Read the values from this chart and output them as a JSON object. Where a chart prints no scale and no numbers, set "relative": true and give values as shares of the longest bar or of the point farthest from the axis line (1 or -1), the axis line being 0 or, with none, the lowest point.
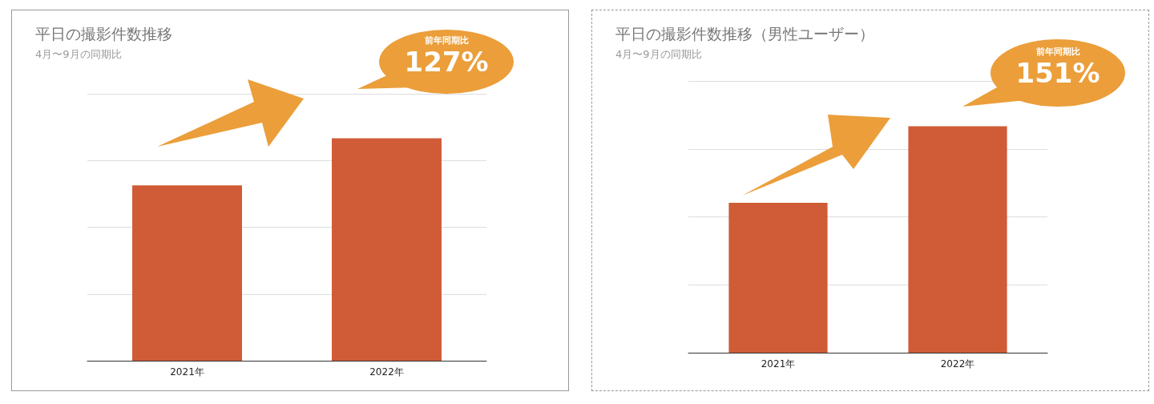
{
  "chart_data": [
    {
      "type": "bar",
      "title": "平日の撮影件数推移",
      "subtitle": "4月〜9月の同期比",
      "categories": [
        "2021年",
        "2022年"
      ],
      "values": [
        0.788,
        1
      ],
      "color": "#cf5c36",
      "relative": true,
      "grid": "y",
      "annotations": [
        "前年同期比",
        "127%"
      ]
    },
    {
      "type": "bar",
      "title": "平日の撮影件数推移（男性ユーザー）",
      "subtitle": "4月〜9月の同期比",
      "categories": [
        "2021年",
        "2022年"
      ],
      "values": [
        0.662,
        1
      ],
      "color": "#cf5c36",
      "relative": true,
      "grid": "y",
      "annotations": [
        "前年同期比",
        "151%"
      ]
    }
  ]
}
